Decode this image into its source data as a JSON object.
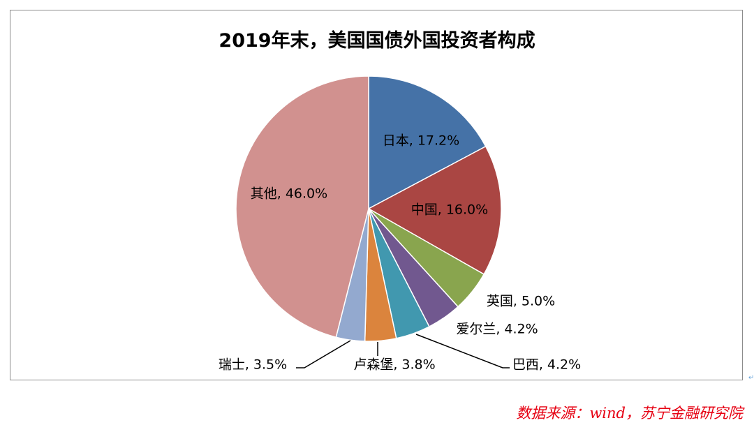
{
  "chart_data": {
    "type": "pie",
    "title": "2019年末，美国国债外国投资者构成",
    "slices": [
      {
        "name": "日本",
        "value": 17.2,
        "label": "日本, 17.2%",
        "color": "#4572a7"
      },
      {
        "name": "中国",
        "value": 16.0,
        "label": "中国, 16.0%",
        "color": "#aa4643"
      },
      {
        "name": "英国",
        "value": 5.0,
        "label": "英国, 5.0%",
        "color": "#89a54e"
      },
      {
        "name": "爱尔兰",
        "value": 4.2,
        "label": "爱尔兰, 4.2%",
        "color": "#71588f"
      },
      {
        "name": "巴西",
        "value": 4.2,
        "label": "巴西, 4.2%",
        "color": "#4198af"
      },
      {
        "name": "卢森堡",
        "value": 3.8,
        "label": "卢森堡, 3.8%",
        "color": "#db843d"
      },
      {
        "name": "瑞士",
        "value": 3.5,
        "label": "瑞士, 3.5%",
        "color": "#93a9cf"
      },
      {
        "name": "其他",
        "value": 46.0,
        "label": "其他, 46.0%",
        "color": "#d1918f"
      }
    ]
  },
  "source": "数据来源：wind，苏宁金融研究院",
  "edge_mark": "↵"
}
